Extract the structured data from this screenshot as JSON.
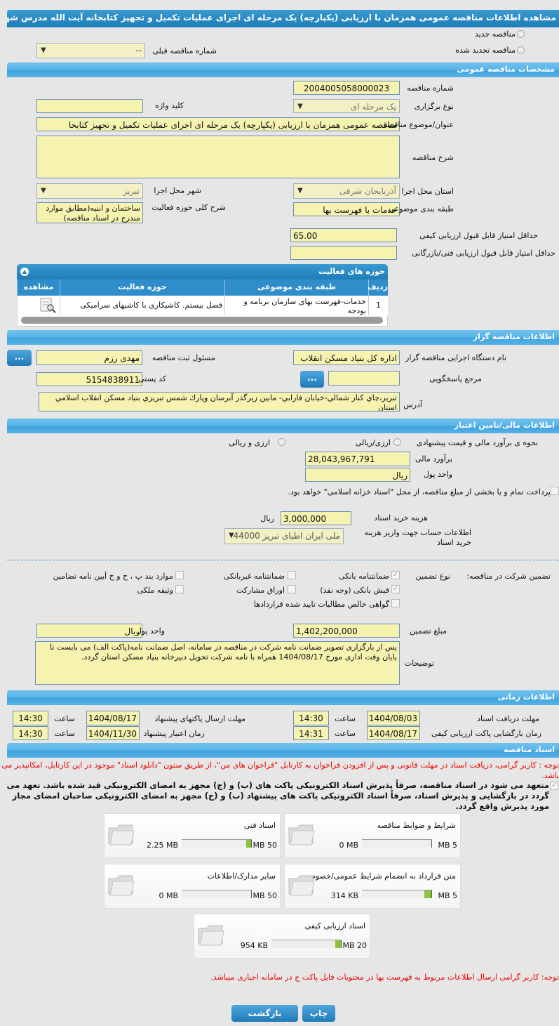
{
  "title": "مشاهده اطلاعات مناقصه عمومی همزمان با ارزیابی (یکپارچه) یک مرحله ای اجرای عملیات تکمیل و تجهیز کتابخانه آیت الله مدرس شهر بناب",
  "tender_type": {
    "new": "مناقصه جدید",
    "renewed": "مناقصه تجدید شده",
    "prev_label": "شماره مناقصه قبلی",
    "prev_value": "--"
  },
  "general": {
    "header": "مشخصات مناقصه عمومی",
    "number_label": "شماره مناقصه",
    "number": "2004005058000023",
    "hold_label": "نوع برگزاری",
    "hold": "یک مرحله ای",
    "keyword_label": "کلید واژه",
    "keyword": "",
    "subject_label": "عنوان/موضوع مناقصه",
    "subject": "مناقصه عمومی همزمان با ارزیابی (یکپارچه) یک مرحله ای اجرای عملیات تکمیل و تجهیز کتابخا",
    "desc_label": "شرح مناقصه",
    "desc": "",
    "province_label": "استان محل اجرا",
    "province": "آذربایجان شرقی",
    "city_label": "شهر محل اجرا",
    "city": "تبریز",
    "category_label": "طبقه بندی موضوعی",
    "category": "خدمات با فهرست بها",
    "scope_label": "شرح کلی حوزه فعالیت",
    "scope": "ساختمان و ابنیه(مطابق موارد مندرج در اسناد مناقصه)",
    "min_quality_label": "حداقل امتیاز قابل قبول ارزیابی کیفی",
    "min_quality": "65.00",
    "min_tech_label": "حداقل امتیاز قابل قبول ارزیابی فنی/بازرگانی",
    "min_tech": ""
  },
  "activities": {
    "header": "حوزه های فعالیت",
    "columns": [
      "ردیف",
      "طبقه بندی موضوعی",
      "حوزه فعالیت",
      "مشاهده"
    ],
    "rows": [
      {
        "row": "1",
        "category": "خدمات-فهرست بهای سازمان برنامه و بودجه",
        "field": "فصل بیستم. کاشیکاری با کاشیهای سرامیکی"
      }
    ]
  },
  "organizer": {
    "header": "اطلاعات مناقصه گزار",
    "org_label": "نام دستگاه اجرایی مناقصه گزار",
    "org": "اداره کل بنیاد مسکن انقلاب",
    "resp_label": "مسئول ثبت مناقصه",
    "resp": "مهدی رزم",
    "ref_label": "مرجع پاسخگویی",
    "ref": "",
    "postal_label": "کد پستی",
    "postal": "5154838911",
    "address_label": "آدرس",
    "address": "تبریز،چاي كنار شمالي-خيابان فارابي- مابين زيرگذر آبرسان وپارك شمس تبريزي بنياد مسكن انقلاب اسلامي استان",
    "more_btn": "..."
  },
  "finance": {
    "header": "اطلاعات مالی/تامین اعتبار",
    "method_label": "نحوه ی برآورد مالی و قیمت پیشنهادی",
    "opt1": "ارزی/ریالی",
    "opt2": "ارزی و ریالی",
    "estimate_label": "برآورد مالی",
    "estimate": "28,043,967,791",
    "currency_label": "واحد پول",
    "currency": "ریال",
    "treasury": "پرداخت تمام و یا بخشی از مبلغ مناقصه، از محل \"اسناد خزانه اسلامی\" خواهد بود.",
    "doc_cost_label": "هزینه خرید اسناد",
    "doc_cost": "3,000,000",
    "doc_cost_unit": "ریال",
    "account_label": "اطلاعات حساب جهت واریز هزینه خرید اسناد",
    "account": "ملی ایران اطبای تبریز 44000"
  },
  "guarantee": {
    "label": "تضمین شرکت در مناقصه:",
    "type_label": "نوع تضمین",
    "options": [
      {
        "label": "ضمانتنامه بانکی",
        "checked": true
      },
      {
        "label": "ضمانتنامه غیربانکی",
        "checked": false
      },
      {
        "label": "موارد بند پ ، ح و خ آیین نامه تضامین",
        "checked": false
      },
      {
        "label": "فیش بانکی (وجه نقد)",
        "checked": true
      },
      {
        "label": "اوراق مشارکت",
        "checked": false
      },
      {
        "label": "وثیقه ملکی",
        "checked": false
      },
      {
        "label": "گواهی خالص مطالبات تایید شده قراردادها",
        "checked": false
      }
    ],
    "amount_label": "مبلغ تضمین",
    "amount": "1,402,200,000",
    "currency_label": "واحد پول",
    "currency": "ریال",
    "notes_label": "توضیحات",
    "notes": "پس از بارگزاری تصویر ضمانت نامه شرکت در مناقصه در سامانه، اصل ضمانت نامه(پاکت الف) می بایست تا پایان وقت اداری مورخ 1404/08/17 همراه با نامه شرکت تحویل دبیرخانه بنیاد مسکن استان گردد."
  },
  "timing": {
    "header": "اطلاعات زمانی",
    "hour_label": "ساعت",
    "doc_deadline_label": "مهلت دریافت اسناد",
    "doc_deadline": "1404/08/03",
    "doc_deadline_time": "14:30",
    "submit_label": "مهلت ارسال پاکتهای پیشنهاد",
    "submit": "1404/08/17",
    "submit_time": "14:30",
    "open_label": "زمان بازگشایی پاکت ارزیابی کیفی",
    "open": "1404/08/17",
    "open_time": "14:31",
    "validity_label": "زمان اعتبار پیشنهاد",
    "validity": "1404/11/30",
    "validity_time": "14:30"
  },
  "documents": {
    "header": "اسناد مناقصه",
    "notice": "توجه : کاربر گرامی، دریافت اسناد در مهلت قانونی و پس از افزودن فراخوان به کارتابل \"فراخوان های من\"، از طریق ستون \"دانلود اسناد\" موجود در این کارتابل، امکانپذیر می باشد.",
    "commit": "متعهد می شود در اسناد مناقصه، صرفاً پذیرش اسناد الکترونیکی پاکت های (ب) و (ج) مجهز به امضای الکترونیکی قید شده باشد. تعهد می گردد در بازگشایی و پذیرش اسناد، صرفاً اسناد الکترونیکی پاکت های پیشنهاد (ب) و (ج) مجهز به امضای الکترونیکی صاحبان امضای مجاز مورد پذیرش واقع گردد.",
    "cards": [
      {
        "title": "شرایط و ضوابط مناقصه",
        "used": "0 MB",
        "max": "5 MB",
        "percent": 0
      },
      {
        "title": "اسناد فنی",
        "used": "2.25 MB",
        "max": "50 MB",
        "percent": 4.5
      },
      {
        "title": "متن قرارداد به انضمام شرایط عمومی/خصوصی",
        "used": "314 KB",
        "max": "5 MB",
        "percent": 6
      },
      {
        "title": "سایر مدارک/اطلاعات",
        "used": "0 MB",
        "max": "50 MB",
        "percent": 0
      },
      {
        "title": "اسناد ارزیابی کیفی",
        "used": "954 KB",
        "max": "20 MB",
        "percent": 4.7
      }
    ],
    "note2": "توجه: کاربر گرامی ارسال اطلاعات مربوط به فهرست بها در محتویات فایل پاکت ج در سامانه اجباری میباشد."
  },
  "buttons": {
    "print": "چاپ",
    "back": "بازگشت"
  },
  "colors": {
    "header": "#2a8cc4",
    "field": "#f6f2b0",
    "notice": "#e00000",
    "progress": "#8cc43c"
  }
}
